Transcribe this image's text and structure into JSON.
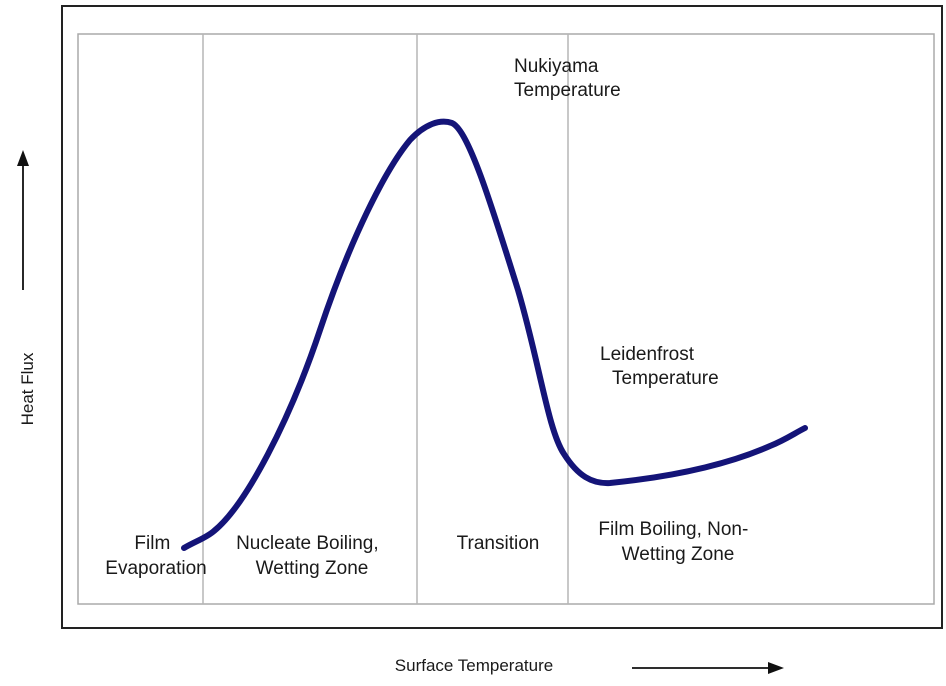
{
  "axes": {
    "x_label": "Surface Temperature",
    "y_label": "Heat Flux"
  },
  "annotations": {
    "nukiyama": [
      "Nukiyama",
      "Temperature"
    ],
    "leidenfrost": [
      "Leidenfrost",
      "Temperature"
    ]
  },
  "regions": {
    "film_evaporation": [
      "Film",
      "Evaporation"
    ],
    "nucleate_boiling": [
      "Nucleate Boiling,",
      "Wetting Zone"
    ],
    "transition": [
      "Transition"
    ],
    "film_boiling": [
      "Film Boiling, Non-",
      "Wetting Zone"
    ]
  },
  "colors": {
    "curve": "#141478",
    "frame": "#222222",
    "inner_border": "#aaaaaa",
    "divider": "#b5b5b5",
    "text": "#1a1a1a"
  }
}
